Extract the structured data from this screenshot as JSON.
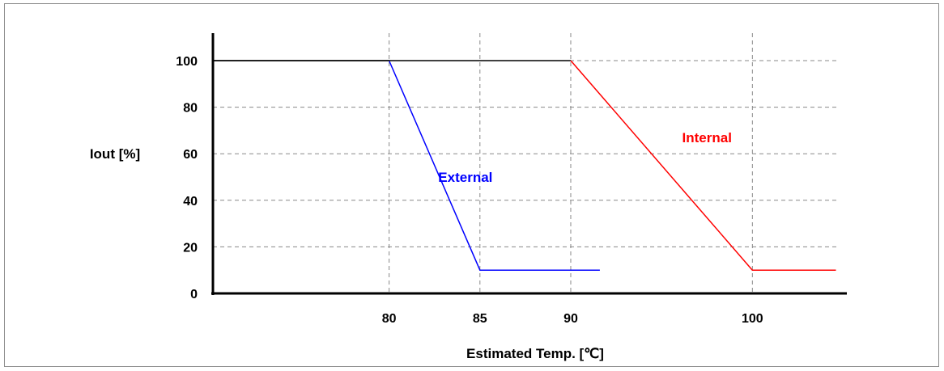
{
  "chart_data": {
    "type": "line",
    "title": "",
    "xlabel": "Estimated Temp. [℃]",
    "ylabel": "Iout [%]",
    "xlim": [
      70.3,
      105.2
    ],
    "ylim": [
      0,
      100
    ],
    "x_ticks": [
      {
        "value": 80,
        "label": "80"
      },
      {
        "value": 85,
        "label": "85"
      },
      {
        "value": 90,
        "label": "90"
      },
      {
        "value": 100,
        "label": "100"
      }
    ],
    "y_ticks": [
      {
        "value": 0,
        "label": "0"
      },
      {
        "value": 20,
        "label": "20"
      },
      {
        "value": 40,
        "label": "40"
      },
      {
        "value": 60,
        "label": "60"
      },
      {
        "value": 80,
        "label": "80"
      },
      {
        "value": 100,
        "label": "100"
      }
    ],
    "grid": true,
    "series": [
      {
        "name": "External",
        "color": "#0000ff",
        "points": [
          [
            70.3,
            100
          ],
          [
            80,
            100
          ],
          [
            85,
            10
          ],
          [
            91.6,
            10
          ]
        ],
        "label_at": [
          84.2,
          48
        ]
      },
      {
        "name": "Internal",
        "color": "#ff0000",
        "points": [
          [
            70.3,
            100
          ],
          [
            90,
            100
          ],
          [
            100,
            10
          ],
          [
            104.6,
            10
          ]
        ],
        "label_at": [
          97.5,
          65
        ]
      }
    ]
  }
}
